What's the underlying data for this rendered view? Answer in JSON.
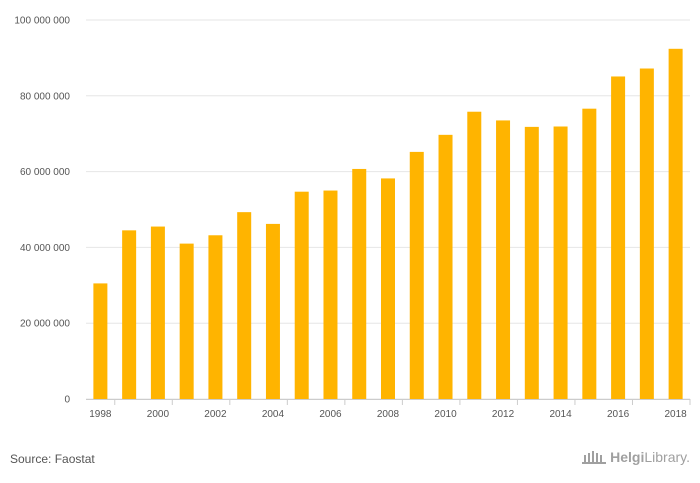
{
  "chart_data": {
    "type": "bar",
    "title": "",
    "xlabel": "",
    "ylabel": "",
    "categories": [
      "1998",
      "1999",
      "2000",
      "2001",
      "2002",
      "2003",
      "2004",
      "2005",
      "2006",
      "2007",
      "2008",
      "2009",
      "2010",
      "2011",
      "2012",
      "2013",
      "2014",
      "2015",
      "2016",
      "2017",
      "2018"
    ],
    "x_tick_labels": [
      "1998",
      "2000",
      "2002",
      "2004",
      "2006",
      "2008",
      "2010",
      "2012",
      "2014",
      "2016",
      "2018"
    ],
    "values": [
      30500000,
      44500000,
      45500000,
      41000000,
      43200000,
      49300000,
      46200000,
      54700000,
      55000000,
      60700000,
      58200000,
      65200000,
      69700000,
      75800000,
      73500000,
      71800000,
      71900000,
      76600000,
      85100000,
      87200000,
      92400000
    ],
    "ylim": [
      0,
      100000000
    ],
    "y_ticks": [
      0,
      20000000,
      40000000,
      60000000,
      80000000,
      100000000
    ],
    "y_tick_labels": [
      "0",
      "20 000 000",
      "40 000 000",
      "60 000 000",
      "80 000 000",
      "100 000 000"
    ],
    "bar_color": "#FFB400",
    "grid": true
  },
  "footer": {
    "source": "Source: Faostat",
    "logo_text_bold": "Helgi",
    "logo_text": "Library."
  }
}
